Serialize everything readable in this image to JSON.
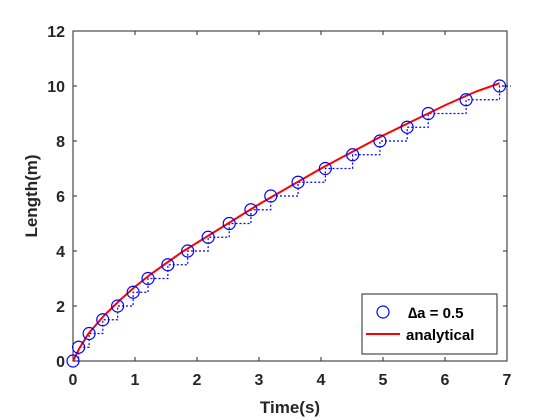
{
  "chart_data": {
    "type": "line",
    "xlabel": "Time(s)",
    "ylabel": "Length(m)",
    "xlim": [
      0,
      7
    ],
    "ylim": [
      0,
      12
    ],
    "xticks": [
      "0",
      "1",
      "2",
      "3",
      "4",
      "5",
      "6",
      "7"
    ],
    "yticks": [
      "0",
      "2",
      "4",
      "6",
      "8",
      "10",
      "12"
    ],
    "grid": false,
    "legend_position": "bottom-right",
    "colors": {
      "markers": "#0000ff",
      "analytical": "#ff0000",
      "axes": "#262626"
    },
    "series": [
      {
        "name": "∆a = 0.5",
        "style": "markers-with-dotted-step",
        "x": [
          0,
          0.09,
          0.26,
          0.48,
          0.72,
          0.97,
          1.21,
          1.53,
          1.85,
          2.18,
          2.52,
          2.87,
          3.19,
          3.63,
          4.07,
          4.51,
          4.95,
          5.39,
          5.73,
          6.34,
          6.88
        ],
        "y": [
          0,
          0.5,
          1.0,
          1.5,
          2.0,
          2.5,
          3.0,
          3.5,
          4.0,
          4.5,
          5.0,
          5.5,
          6.0,
          6.5,
          7.0,
          7.5,
          8.0,
          8.5,
          9.0,
          9.5,
          10.0
        ]
      },
      {
        "name": "analytical",
        "style": "line",
        "x": [
          0,
          0.1,
          0.25,
          0.5,
          0.75,
          1.0,
          1.25,
          1.5,
          1.75,
          2.0,
          2.5,
          3.0,
          3.5,
          4.0,
          4.5,
          5.0,
          5.5,
          6.0,
          6.5,
          6.88
        ],
        "y": [
          0,
          0.45,
          1.0,
          1.65,
          2.2,
          2.7,
          3.15,
          3.55,
          3.95,
          4.3,
          5.0,
          5.7,
          6.35,
          7.0,
          7.6,
          8.2,
          8.75,
          9.3,
          9.8,
          10.1
        ]
      }
    ]
  }
}
